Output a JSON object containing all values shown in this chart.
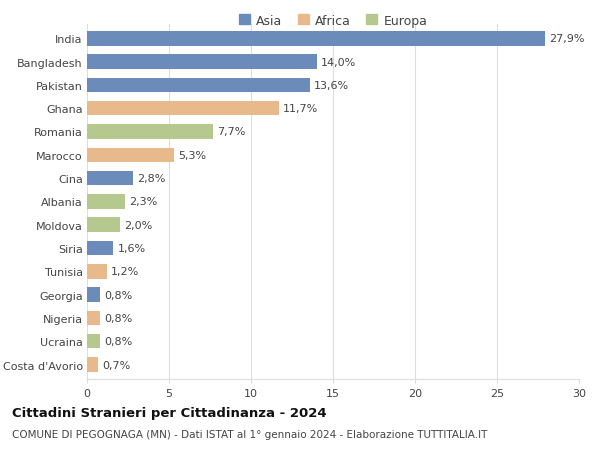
{
  "categories": [
    "India",
    "Bangladesh",
    "Pakistan",
    "Ghana",
    "Romania",
    "Marocco",
    "Cina",
    "Albania",
    "Moldova",
    "Siria",
    "Tunisia",
    "Georgia",
    "Nigeria",
    "Ucraina",
    "Costa d'Avorio"
  ],
  "values": [
    27.9,
    14.0,
    13.6,
    11.7,
    7.7,
    5.3,
    2.8,
    2.3,
    2.0,
    1.6,
    1.2,
    0.8,
    0.8,
    0.8,
    0.7
  ],
  "labels": [
    "27,9%",
    "14,0%",
    "13,6%",
    "11,7%",
    "7,7%",
    "5,3%",
    "2,8%",
    "2,3%",
    "2,0%",
    "1,6%",
    "1,2%",
    "0,8%",
    "0,8%",
    "0,8%",
    "0,7%"
  ],
  "continents": [
    "Asia",
    "Asia",
    "Asia",
    "Africa",
    "Europa",
    "Africa",
    "Asia",
    "Europa",
    "Europa",
    "Asia",
    "Africa",
    "Asia",
    "Africa",
    "Europa",
    "Africa"
  ],
  "colors": {
    "Asia": "#6b8cba",
    "Africa": "#e8b98a",
    "Europa": "#b5c98e"
  },
  "xlim": [
    0,
    30
  ],
  "xticks": [
    0,
    5,
    10,
    15,
    20,
    25,
    30
  ],
  "title": "Cittadini Stranieri per Cittadinanza - 2024",
  "subtitle": "COMUNE DI PEGOGNAGA (MN) - Dati ISTAT al 1° gennaio 2024 - Elaborazione TUTTITALIA.IT",
  "background_color": "#ffffff",
  "grid_color": "#dddddd",
  "bar_height": 0.62,
  "title_fontsize": 9.5,
  "subtitle_fontsize": 7.5,
  "tick_fontsize": 8.0,
  "label_fontsize": 8.0,
  "legend_fontsize": 9.0
}
